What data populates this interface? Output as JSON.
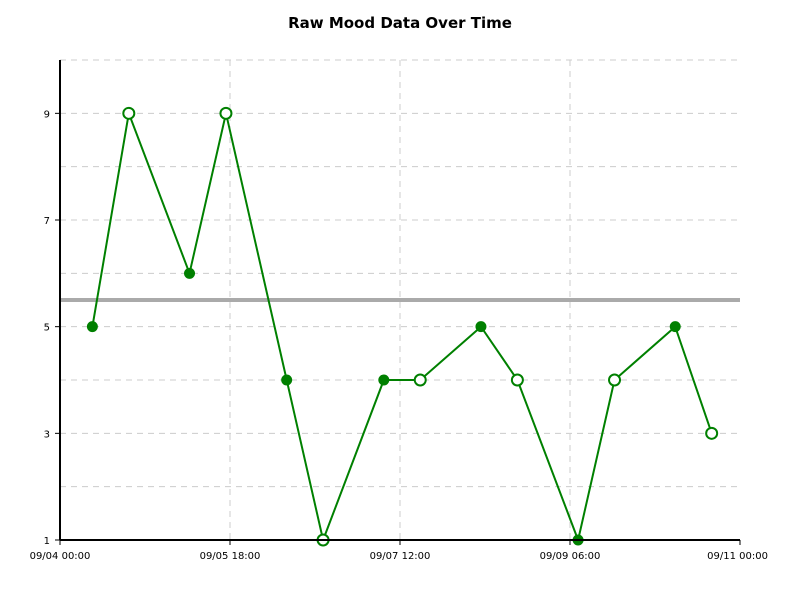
{
  "chart_data": {
    "type": "line",
    "title": "Raw Mood Data Over Time",
    "xlabel": "",
    "ylabel": "",
    "xlim": [
      "2023-09-04T00:00",
      "2023-09-11T00:00"
    ],
    "ylim": [
      1,
      10
    ],
    "x_ticks": [
      "09/04 00:00",
      "09/05 18:00",
      "09/07 12:00",
      "09/09 06:00",
      "09/11 00:00"
    ],
    "y_ticks": [
      "1",
      "3",
      "5",
      "7",
      "9"
    ],
    "reference_line": {
      "y": 5.5,
      "color": "#aaaaaa"
    },
    "grid": true,
    "line_color": "#008000",
    "points": [
      {
        "x": "2023-09-04T08:00",
        "y": 5,
        "filled": true
      },
      {
        "x": "2023-09-04T17:00",
        "y": 9,
        "filled": false
      },
      {
        "x": "2023-09-05T08:00",
        "y": 6,
        "filled": true
      },
      {
        "x": "2023-09-05T17:00",
        "y": 9,
        "filled": false
      },
      {
        "x": "2023-09-06T08:00",
        "y": 4,
        "filled": true
      },
      {
        "x": "2023-09-06T17:00",
        "y": 1,
        "filled": false
      },
      {
        "x": "2023-09-07T08:00",
        "y": 4,
        "filled": true
      },
      {
        "x": "2023-09-07T17:00",
        "y": 4,
        "filled": false
      },
      {
        "x": "2023-09-08T08:00",
        "y": 5,
        "filled": true
      },
      {
        "x": "2023-09-08T17:00",
        "y": 4,
        "filled": false
      },
      {
        "x": "2023-09-09T08:00",
        "y": 1,
        "filled": true
      },
      {
        "x": "2023-09-09T17:00",
        "y": 4,
        "filled": false
      },
      {
        "x": "2023-09-10T08:00",
        "y": 5,
        "filled": true
      },
      {
        "x": "2023-09-10T17:00",
        "y": 3,
        "filled": false
      }
    ]
  }
}
